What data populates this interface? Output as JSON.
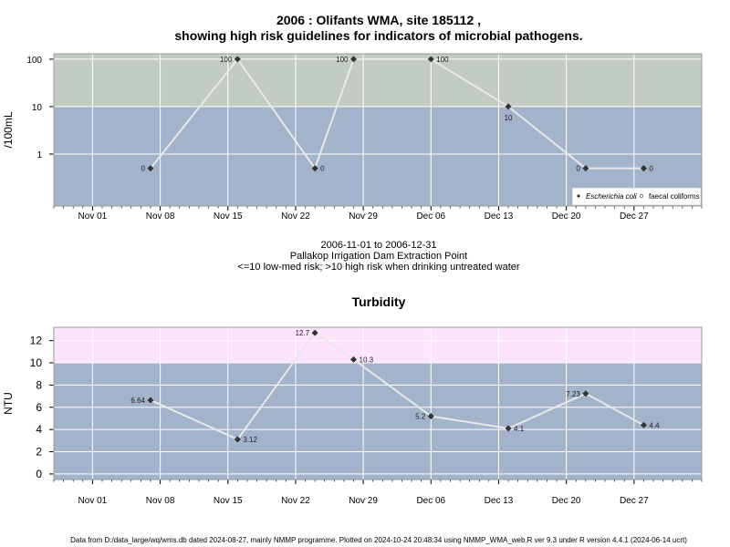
{
  "header": {
    "title_line1": "2006 : Olifants WMA, site 185112 ,",
    "title_line2": "showing high risk guidelines for indicators of microbial pathogens."
  },
  "caption": {
    "line1": "2006-11-01 to 2006-12-31",
    "line2": "Pallakop Irrigation Dam Extraction Point",
    "line3": "<=10 low-med risk; >10 high risk when drinking untreated water"
  },
  "footer": {
    "text": "Data from D:/data_large/wq/wms.db dated 2024-08-27, mainly NMMP programme. Plotted on 2024-10-24 20:48:34 using NMMP_WMA_web.R ver 9.3 under R version 4.4.1 (2024-06-14 ucrt)"
  },
  "colors": {
    "low_band": "#a3b3cb",
    "high_band_microbial": "#c3ccc3",
    "high_band_turbidity": "#fde3fb",
    "grid": "#ffffff",
    "line": "#e8e8e8",
    "point": "#333333"
  },
  "chart_data": [
    {
      "type": "line",
      "title": "",
      "xlabel": "",
      "ylabel": "/100mL",
      "yscale": "log",
      "ylim": [
        0.08,
        130
      ],
      "yticks": [
        1,
        10,
        100
      ],
      "ytick_labels": [
        "1",
        "10",
        "100"
      ],
      "threshold": 10,
      "xlim": [
        "2006-10-28",
        "2007-01-03"
      ],
      "xticks": [
        "2006-11-01",
        "2006-11-08",
        "2006-11-15",
        "2006-11-22",
        "2006-11-29",
        "2006-12-06",
        "2006-12-13",
        "2006-12-20",
        "2006-12-27"
      ],
      "xtick_labels": [
        "Nov 01",
        "Nov 08",
        "Nov 15",
        "Nov 22",
        "Nov 29",
        "Dec 06",
        "Dec 13",
        "Dec 20",
        "Dec 27"
      ],
      "legend_position": "bottom-right",
      "grid": true,
      "series": [
        {
          "name": "Escherichia coli",
          "marker": "diamond",
          "points": [
            {
              "x": "2006-11-07",
              "y": 0.5,
              "label": "0",
              "label_side": "left"
            },
            {
              "x": "2006-11-16",
              "y": 100,
              "label": "100",
              "label_side": "left"
            },
            {
              "x": "2006-11-24",
              "y": 0.5,
              "label": "0",
              "label_side": "right"
            },
            {
              "x": "2006-11-28",
              "y": 100,
              "label": "100",
              "label_side": "left"
            },
            {
              "x": "2006-12-06",
              "y": 100,
              "label": "100",
              "label_side": "right"
            },
            {
              "x": "2006-12-14",
              "y": 10,
              "label": "10",
              "label_side": "below"
            },
            {
              "x": "2006-12-22",
              "y": 0.5,
              "label": "0",
              "label_side": "left"
            },
            {
              "x": "2006-12-28",
              "y": 0.5,
              "label": "0",
              "label_side": "right"
            }
          ]
        },
        {
          "name": "faecal coliforms",
          "marker": "circle",
          "points": []
        }
      ]
    },
    {
      "type": "line",
      "title": "Turbidity",
      "xlabel": "",
      "ylabel": "NTU",
      "yscale": "linear",
      "ylim": [
        -0.5,
        13.2
      ],
      "yticks": [
        0,
        2,
        4,
        6,
        8,
        10,
        12
      ],
      "ytick_labels": [
        "0",
        "2",
        "4",
        "6",
        "8",
        "10",
        "12"
      ],
      "threshold": 10,
      "xlim": [
        "2006-10-28",
        "2007-01-03"
      ],
      "xticks": [
        "2006-11-01",
        "2006-11-08",
        "2006-11-15",
        "2006-11-22",
        "2006-11-29",
        "2006-12-06",
        "2006-12-13",
        "2006-12-20",
        "2006-12-27"
      ],
      "xtick_labels": [
        "Nov 01",
        "Nov 08",
        "Nov 15",
        "Nov 22",
        "Nov 29",
        "Dec 06",
        "Dec 13",
        "Dec 20",
        "Dec 27"
      ],
      "grid": true,
      "series": [
        {
          "name": "",
          "marker": "diamond",
          "points": [
            {
              "x": "2006-11-07",
              "y": 6.64,
              "label": "6.64",
              "label_side": "left"
            },
            {
              "x": "2006-11-16",
              "y": 3.12,
              "label": "3.12",
              "label_side": "right"
            },
            {
              "x": "2006-11-24",
              "y": 12.7,
              "label": "12.7",
              "label_side": "left"
            },
            {
              "x": "2006-11-28",
              "y": 10.3,
              "label": "10.3",
              "label_side": "right"
            },
            {
              "x": "2006-12-06",
              "y": 5.2,
              "label": "5.2",
              "label_side": "left"
            },
            {
              "x": "2006-12-14",
              "y": 4.1,
              "label": "4.1",
              "label_side": "right"
            },
            {
              "x": "2006-12-22",
              "y": 7.23,
              "label": "7.23",
              "label_side": "left"
            },
            {
              "x": "2006-12-28",
              "y": 4.4,
              "label": "4.4",
              "label_side": "right"
            }
          ]
        }
      ]
    }
  ]
}
